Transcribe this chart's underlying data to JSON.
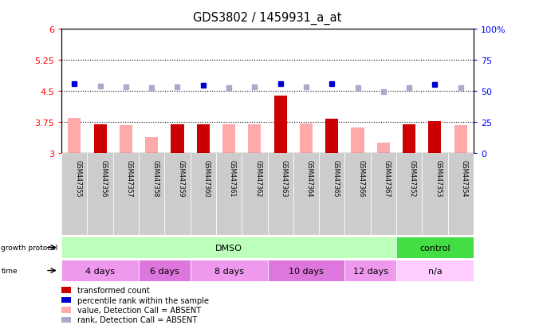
{
  "title": "GDS3802 / 1459931_a_at",
  "samples": [
    "GSM447355",
    "GSM447356",
    "GSM447357",
    "GSM447358",
    "GSM447359",
    "GSM447360",
    "GSM447361",
    "GSM447362",
    "GSM447363",
    "GSM447364",
    "GSM447365",
    "GSM447366",
    "GSM447367",
    "GSM447352",
    "GSM447353",
    "GSM447354"
  ],
  "bar_values": [
    3.85,
    3.68,
    3.67,
    3.38,
    3.68,
    3.68,
    3.68,
    3.68,
    4.38,
    3.7,
    3.83,
    3.6,
    3.25,
    3.68,
    3.77,
    3.67
  ],
  "bar_absent": [
    true,
    false,
    true,
    true,
    false,
    false,
    true,
    true,
    false,
    true,
    false,
    true,
    true,
    false,
    false,
    true
  ],
  "rank_values": [
    4.68,
    4.62,
    4.6,
    4.57,
    4.6,
    4.63,
    4.58,
    4.6,
    4.68,
    4.6,
    4.68,
    4.57,
    4.48,
    4.57,
    4.65,
    4.58
  ],
  "rank_absent": [
    false,
    true,
    true,
    true,
    true,
    false,
    true,
    true,
    false,
    true,
    false,
    true,
    true,
    true,
    false,
    true
  ],
  "ylim_left": [
    3.0,
    6.0
  ],
  "ylim_right": [
    0,
    100
  ],
  "yticks_left": [
    3.0,
    3.75,
    4.5,
    5.25,
    6.0
  ],
  "yticks_right": [
    0,
    25,
    50,
    75,
    100
  ],
  "hlines": [
    3.75,
    4.5,
    5.25
  ],
  "bar_color_present": "#cc0000",
  "bar_color_absent": "#ffaaaa",
  "rank_color_present": "#0000cc",
  "rank_color_absent": "#aaaacc",
  "growth_protocol_groups": [
    {
      "label": "DMSO",
      "start": 0,
      "end": 13,
      "color": "#bbffbb"
    },
    {
      "label": "control",
      "start": 13,
      "end": 16,
      "color": "#44dd44"
    }
  ],
  "time_groups": [
    {
      "label": "4 days",
      "start": 0,
      "end": 3,
      "color": "#ee99ee"
    },
    {
      "label": "6 days",
      "start": 3,
      "end": 5,
      "color": "#dd77dd"
    },
    {
      "label": "8 days",
      "start": 5,
      "end": 8,
      "color": "#ee99ee"
    },
    {
      "label": "10 days",
      "start": 8,
      "end": 11,
      "color": "#dd77dd"
    },
    {
      "label": "12 days",
      "start": 11,
      "end": 13,
      "color": "#ee99ee"
    },
    {
      "label": "n/a",
      "start": 13,
      "end": 16,
      "color": "#ffccff"
    }
  ],
  "legend_items": [
    {
      "label": "transformed count",
      "color": "#cc0000"
    },
    {
      "label": "percentile rank within the sample",
      "color": "#0000cc"
    },
    {
      "label": "value, Detection Call = ABSENT",
      "color": "#ffaaaa"
    },
    {
      "label": "rank, Detection Call = ABSENT",
      "color": "#aaaacc"
    }
  ]
}
